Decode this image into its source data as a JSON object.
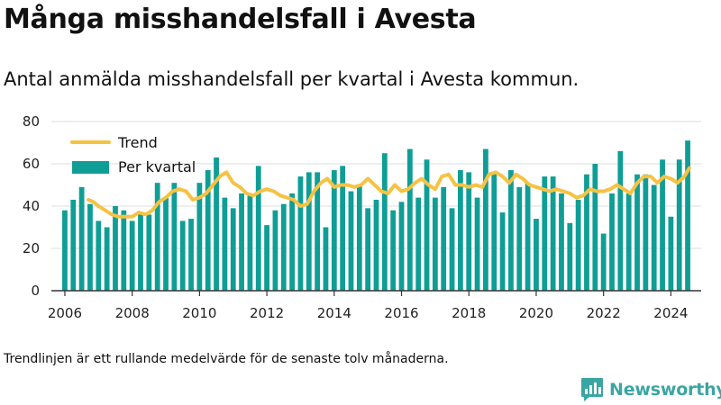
{
  "header": {
    "title": "Många misshandelsfall i Avesta",
    "subtitle": "Antal anmälda misshandelsfall per kvartal i Avesta kommun."
  },
  "footnote": "Trendlinjen är ett rullande medelvärde för de senaste tolv månaderna.",
  "brand": {
    "name": "Newsworthy",
    "icon": "newsworthy-logo-icon"
  },
  "colors": {
    "bars": "#0f9e96",
    "trend": "#f6c244",
    "grid": "#dcdcdc",
    "axis": "#333333",
    "brand": "#3aa6a3"
  },
  "chart_data": {
    "type": "bar",
    "title": "",
    "xlabel": "",
    "ylabel": "",
    "ylim": [
      0,
      80
    ],
    "yticks": [
      "0",
      "20",
      "40",
      "60",
      "80"
    ],
    "xticks": [
      "2006",
      "2008",
      "2010",
      "2012",
      "2014",
      "2016",
      "2018",
      "2020",
      "2022",
      "2024"
    ],
    "xrange": [
      2005.6,
      2024.9
    ],
    "grid": true,
    "legend_position": "top-left",
    "categories": [
      "2006 K1",
      "2006 K2",
      "2006 K3",
      "2006 K4",
      "2007 K1",
      "2007 K2",
      "2007 K3",
      "2007 K4",
      "2008 K1",
      "2008 K2",
      "2008 K3",
      "2008 K4",
      "2009 K1",
      "2009 K2",
      "2009 K3",
      "2009 K4",
      "2010 K1",
      "2010 K2",
      "2010 K3",
      "2010 K4",
      "2011 K1",
      "2011 K2",
      "2011 K3",
      "2011 K4",
      "2012 K1",
      "2012 K2",
      "2012 K3",
      "2012 K4",
      "2013 K1",
      "2013 K2",
      "2013 K3",
      "2013 K4",
      "2014 K1",
      "2014 K2",
      "2014 K3",
      "2014 K4",
      "2015 K1",
      "2015 K2",
      "2015 K3",
      "2015 K4",
      "2016 K1",
      "2016 K2",
      "2016 K3",
      "2016 K4",
      "2017 K1",
      "2017 K2",
      "2017 K3",
      "2017 K4",
      "2018 K1",
      "2018 K2",
      "2018 K3",
      "2018 K4",
      "2019 K1",
      "2019 K2",
      "2019 K3",
      "2019 K4",
      "2020 K1",
      "2020 K2",
      "2020 K3",
      "2020 K4",
      "2021 K1",
      "2021 K2",
      "2021 K3",
      "2021 K4",
      "2022 K1",
      "2022 K2",
      "2022 K3",
      "2022 K4",
      "2023 K1",
      "2023 K2",
      "2023 K3",
      "2023 K4",
      "2024 K1",
      "2024 K2",
      "2024 K3"
    ],
    "series": [
      {
        "name": "Per kvartal",
        "kind": "bar",
        "x": [
          2006.0,
          2006.25,
          2006.5,
          2006.75,
          2007.0,
          2007.25,
          2007.5,
          2007.75,
          2008.0,
          2008.25,
          2008.5,
          2008.75,
          2009.0,
          2009.25,
          2009.5,
          2009.75,
          2010.0,
          2010.25,
          2010.5,
          2010.75,
          2011.0,
          2011.25,
          2011.5,
          2011.75,
          2012.0,
          2012.25,
          2012.5,
          2012.75,
          2013.0,
          2013.25,
          2013.5,
          2013.75,
          2014.0,
          2014.25,
          2014.5,
          2014.75,
          2015.0,
          2015.25,
          2015.5,
          2015.75,
          2016.0,
          2016.25,
          2016.5,
          2016.75,
          2017.0,
          2017.25,
          2017.5,
          2017.75,
          2018.0,
          2018.25,
          2018.5,
          2018.75,
          2019.0,
          2019.25,
          2019.5,
          2019.75,
          2020.0,
          2020.25,
          2020.5,
          2020.75,
          2021.0,
          2021.25,
          2021.5,
          2021.75,
          2022.0,
          2022.25,
          2022.5,
          2022.75,
          2023.0,
          2023.25,
          2023.5,
          2023.75,
          2024.0,
          2024.25,
          2024.5
        ],
        "values": [
          38,
          43,
          49,
          41,
          33,
          30,
          40,
          38,
          33,
          37,
          36,
          51,
          44,
          51,
          33,
          34,
          51,
          57,
          63,
          44,
          39,
          46,
          45,
          59,
          31,
          38,
          41,
          46,
          54,
          56,
          56,
          30,
          57,
          59,
          47,
          50,
          39,
          43,
          65,
          38,
          42,
          67,
          44,
          62,
          44,
          49,
          39,
          57,
          56,
          44,
          67,
          56,
          37,
          57,
          49,
          51,
          34,
          54,
          54,
          46,
          32,
          43,
          55,
          60,
          27,
          46,
          66,
          46,
          55,
          55,
          50,
          62,
          35,
          62,
          71
        ]
      },
      {
        "name": "Trend",
        "kind": "line",
        "x": [
          2006.7,
          2006.85,
          2007.0,
          2007.2,
          2007.4,
          2007.6,
          2007.8,
          2008.0,
          2008.2,
          2008.4,
          2008.6,
          2008.8,
          2009.0,
          2009.2,
          2009.4,
          2009.6,
          2009.8,
          2010.0,
          2010.2,
          2010.4,
          2010.6,
          2010.8,
          2011.0,
          2011.2,
          2011.4,
          2011.6,
          2011.8,
          2012.0,
          2012.2,
          2012.4,
          2012.6,
          2012.8,
          2013.0,
          2013.2,
          2013.4,
          2013.6,
          2013.8,
          2014.0,
          2014.2,
          2014.4,
          2014.6,
          2014.8,
          2015.0,
          2015.2,
          2015.4,
          2015.6,
          2015.8,
          2016.0,
          2016.2,
          2016.4,
          2016.6,
          2016.8,
          2017.0,
          2017.2,
          2017.4,
          2017.6,
          2017.8,
          2018.0,
          2018.2,
          2018.4,
          2018.6,
          2018.8,
          2019.0,
          2019.2,
          2019.4,
          2019.6,
          2019.8,
          2020.0,
          2020.2,
          2020.4,
          2020.6,
          2020.8,
          2021.0,
          2021.2,
          2021.4,
          2021.6,
          2021.8,
          2022.0,
          2022.2,
          2022.4,
          2022.6,
          2022.8,
          2023.0,
          2023.2,
          2023.4,
          2023.6,
          2023.8,
          2024.0,
          2024.2,
          2024.4,
          2024.55
        ],
        "values": [
          43,
          42,
          40,
          38,
          36,
          35,
          35,
          35,
          37,
          36,
          38,
          42,
          44,
          47,
          48,
          47,
          43,
          44,
          46,
          50,
          54,
          56,
          51,
          49,
          46,
          45,
          47,
          48,
          47,
          45,
          44,
          43,
          40,
          41,
          47,
          51,
          53,
          49,
          50,
          50,
          49,
          50,
          53,
          50,
          47,
          46,
          50,
          47,
          48,
          51,
          53,
          50,
          48,
          54,
          55,
          50,
          50,
          49,
          50,
          49,
          55,
          56,
          54,
          51,
          55,
          53,
          50,
          49,
          48,
          47,
          48,
          47,
          46,
          44,
          45,
          48,
          47,
          47,
          48,
          50,
          48,
          46,
          51,
          54,
          54,
          51,
          54,
          53,
          51,
          54,
          58
        ]
      }
    ]
  }
}
